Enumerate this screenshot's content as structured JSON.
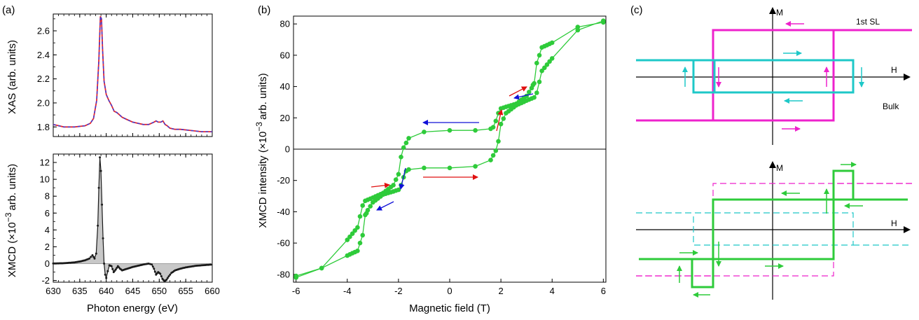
{
  "panels": {
    "a": {
      "panel_label": "(a)",
      "xlabel": "Photon energy (eV)",
      "xlim": [
        630,
        660
      ],
      "xticks": [
        "630",
        "635",
        "640",
        "645",
        "650",
        "655",
        "660"
      ],
      "top": {
        "ylabel": "XAS (arb. units)",
        "ylim": [
          1.72,
          2.74
        ],
        "yticks": [
          "1.8",
          "2.0",
          "2.2",
          "2.4",
          "2.6"
        ]
      },
      "bottom": {
        "ylabel_main": "XMCD  (×10",
        "ylabel_sup": "−3",
        "ylabel_tail": "arb. units)",
        "ylim": [
          -2.2,
          13
        ],
        "yticks": [
          "-2",
          "0",
          "2",
          "4",
          "6",
          "8",
          "10",
          "12"
        ]
      }
    },
    "b": {
      "panel_label": "(b)",
      "xlabel": "Magnetic field (T)",
      "ylabel_main": "XMCD intensity  (×10",
      "ylabel_sup": "−3",
      "ylabel_tail": "arb. units)",
      "xlim": [
        -6.1,
        6.1
      ],
      "ylim": [
        -85,
        85
      ],
      "xticks": [
        "-6",
        "-4",
        "-2",
        "0",
        "2",
        "4",
        "6"
      ],
      "yticks": [
        "-80",
        "-60",
        "-40",
        "-20",
        "0",
        "20",
        "40",
        "60",
        "80"
      ]
    },
    "c": {
      "panel_label": "(c)",
      "axis_m": "M",
      "axis_h": "H",
      "label_sl": "1st SL",
      "label_bulk": "Bulk"
    }
  },
  "colors": {
    "xas_red": "#e8262a",
    "xas_blue": "#3b3bd8",
    "xmcd": "#1a1a1a",
    "fill": "#c8c8c8",
    "hyst": "#2ecb3a",
    "magenta": "#ee22cc",
    "cyan": "#1ec8c8",
    "arrow_red": "#e01010",
    "arrow_blue": "#1010d8"
  },
  "chart_data": [
    {
      "type": "line",
      "title": "",
      "xlabel": "Photon energy (eV)",
      "ylabel": "XAS (arb. units)",
      "xlim": [
        630,
        660
      ],
      "ylim": [
        1.72,
        2.74
      ],
      "series": [
        {
          "x": [
            630,
            632,
            634,
            636,
            637,
            637.6,
            638.2,
            638.6,
            638.9,
            639.1,
            639.3,
            639.6,
            640.0,
            640.5,
            641.0,
            641.5,
            642.0,
            642.5,
            643.0,
            644,
            645,
            646,
            647,
            648,
            649,
            649.4,
            649.8,
            650.3,
            650.7,
            651.1,
            651.5,
            652,
            653,
            654,
            656,
            658,
            660
          ],
          "y": [
            1.82,
            1.8,
            1.8,
            1.81,
            1.83,
            1.87,
            2.02,
            2.35,
            2.72,
            2.7,
            2.45,
            2.18,
            2.07,
            2.02,
            1.98,
            1.93,
            1.92,
            1.9,
            1.88,
            1.86,
            1.84,
            1.83,
            1.82,
            1.82,
            1.84,
            1.85,
            1.84,
            1.84,
            1.85,
            1.82,
            1.81,
            1.79,
            1.78,
            1.78,
            1.77,
            1.76,
            1.76
          ]
        }
      ]
    },
    {
      "type": "line",
      "title": "",
      "xlabel": "Photon energy (eV)",
      "ylabel": "XMCD",
      "xlim": [
        630,
        660
      ],
      "ylim": [
        -2.2,
        13
      ],
      "series": [
        {
          "x": [
            630,
            632,
            634,
            635,
            636,
            636.8,
            637.4,
            637.8,
            638.1,
            638.4,
            638.6,
            638.8,
            639.0,
            639.2,
            639.4,
            639.6,
            639.8,
            640.0,
            640.3,
            640.6,
            641.0,
            641.4,
            641.8,
            642.2,
            642.6,
            643.0,
            644,
            645,
            646,
            647,
            648,
            648.6,
            649.0,
            649.4,
            649.8,
            650.2,
            650.6,
            651.0,
            651.4,
            651.8,
            652.3,
            653,
            654,
            655,
            656,
            657,
            658,
            659,
            660
          ],
          "y": [
            0.02,
            0.05,
            0.15,
            0.25,
            0.4,
            0.6,
            1.0,
            0.6,
            1.2,
            4.5,
            9.0,
            12.6,
            11.0,
            7.0,
            3.0,
            0.0,
            -1.3,
            -1.7,
            -0.9,
            -0.2,
            -0.3,
            -1.0,
            -0.7,
            -0.3,
            -0.6,
            -0.8,
            -0.6,
            -0.4,
            -0.25,
            -0.1,
            0.0,
            -0.1,
            -0.6,
            -1.3,
            -1.0,
            -1.2,
            -1.8,
            -2.1,
            -1.9,
            -1.5,
            -1.1,
            -0.8,
            -0.6,
            -0.45,
            -0.35,
            -0.25,
            -0.2,
            -0.15,
            -0.1
          ]
        }
      ]
    },
    {
      "type": "line",
      "title": "",
      "xlabel": "Magnetic field (T)",
      "ylabel": "XMCD intensity",
      "xlim": [
        -6.1,
        6.1
      ],
      "ylim": [
        -85,
        85
      ],
      "series": [
        {
          "x": [
            6,
            5,
            4,
            3.6,
            3.4,
            3.3,
            3.25,
            3.2,
            3.0,
            2.6,
            2.2,
            2.0,
            1.9,
            1.8,
            1.7,
            1.6,
            1.0,
            0.0,
            -1.0,
            -1.6,
            -1.8,
            -1.9,
            -2.0,
            -2.2,
            -2.6,
            -3.0,
            -3.3,
            -3.4,
            -3.6,
            -4,
            -5,
            -6
          ],
          "y": [
            81,
            78,
            68,
            65,
            55,
            42,
            41,
            39,
            34,
            29,
            27,
            26,
            23,
            18,
            14,
            13,
            12,
            12,
            11,
            7,
            1,
            -5,
            -16,
            -23,
            -28,
            -31,
            -33,
            -36,
            -50,
            -58,
            -76,
            -82
          ]
        },
        {
          "x": [
            -6,
            -5,
            -4,
            -3.6,
            -3.4,
            -3.3,
            -3.25,
            -3.2,
            -3.0,
            -2.6,
            -2.2,
            -2.0,
            -1.9,
            -1.8,
            -1.7,
            -1.6,
            -1.0,
            0.0,
            1.0,
            1.6,
            1.8,
            1.9,
            2.0,
            2.2,
            2.6,
            3.0,
            3.3,
            3.4,
            3.6,
            4,
            5,
            6
          ],
          "y": [
            -81,
            -76,
            -68,
            -65,
            -55,
            -42,
            -41,
            -39,
            -34,
            -29,
            -27,
            -26,
            -23,
            -18,
            -14,
            -13,
            -12,
            -12,
            -11,
            -7,
            -1,
            5,
            16,
            23,
            28,
            31,
            33,
            36,
            50,
            58,
            76,
            82
          ]
        }
      ]
    }
  ]
}
